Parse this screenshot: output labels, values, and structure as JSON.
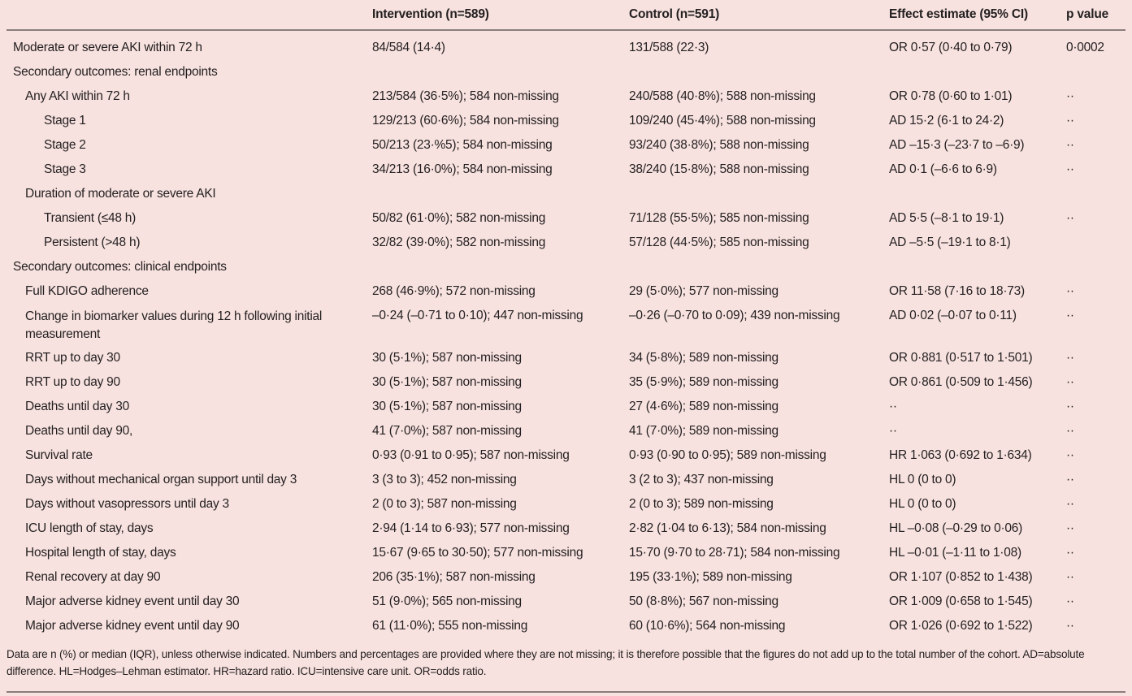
{
  "table": {
    "headers": {
      "outcome": "",
      "intervention": "Intervention (n=589)",
      "control": "Control (n=591)",
      "effect": "Effect estimate (95% CI)",
      "p": "p value"
    },
    "rows": [
      {
        "label": "Moderate or severe AKI within 72 h",
        "level": 0,
        "intervention": "84/584 (14·4)",
        "control": "131/588 (22·3)",
        "effect": "OR 0·57 (0·40 to 0·79)",
        "p": "0·0002"
      },
      {
        "label": "Secondary outcomes: renal endpoints",
        "level": 0,
        "intervention": "",
        "control": "",
        "effect": "",
        "p": ""
      },
      {
        "label": "Any AKI within 72 h",
        "level": 1,
        "intervention": "213/584 (36·5%); 584 non-missing",
        "control": "240/588 (40·8%); 588 non-missing",
        "effect": "OR 0·78 (0·60 to 1·01)",
        "p": "··"
      },
      {
        "label": "Stage 1",
        "level": 2,
        "intervention": "129/213 (60·6%); 584 non-missing",
        "control": "109/240 (45·4%); 588 non-missing",
        "effect": "AD 15·2 (6·1 to 24·2)",
        "p": "··"
      },
      {
        "label": "Stage 2",
        "level": 2,
        "intervention": "50/213 (23·%5); 584 non-missing",
        "control": "93/240 (38·8%); 588 non-missing",
        "effect": "AD –15·3 (–23·7 to –6·9)",
        "p": "··"
      },
      {
        "label": "Stage 3",
        "level": 2,
        "intervention": "34/213 (16·0%); 584 non-missing",
        "control": "38/240 (15·8%); 588 non-missing",
        "effect": "AD 0·1 (–6·6 to 6·9)",
        "p": "··"
      },
      {
        "label": "Duration of moderate or severe AKI",
        "level": 1,
        "intervention": "",
        "control": "",
        "effect": "",
        "p": ""
      },
      {
        "label": "Transient (≤48 h)",
        "level": 2,
        "intervention": "50/82 (61·0%); 582 non-missing",
        "control": "71/128 (55·5%); 585 non-missing",
        "effect": "AD 5·5 (–8·1 to 19·1)",
        "p": "··"
      },
      {
        "label": "Persistent (>48 h)",
        "level": 2,
        "intervention": "32/82 (39·0%); 582 non-missing",
        "control": "57/128 (44·5%); 585 non-missing",
        "effect": "AD –5·5 (–19·1 to 8·1)",
        "p": ""
      },
      {
        "label": "Secondary outcomes: clinical endpoints",
        "level": 0,
        "intervention": "",
        "control": "",
        "effect": "",
        "p": ""
      },
      {
        "label": "Full KDIGO adherence",
        "level": 1,
        "intervention": "268 (46·9%); 572 non-missing",
        "control": "29 (5·0%); 577 non-missing",
        "effect": "OR 11·58 (7·16 to 18·73)",
        "p": "··"
      },
      {
        "label": "Change in biomarker values during 12 h following initial measurement",
        "level": 1,
        "tall": true,
        "intervention": "–0·24 (–0·71 to 0·10); 447 non-missing",
        "control": "–0·26 (–0·70 to 0·09); 439 non-missing",
        "effect": "AD 0·02 (–0·07 to 0·11)",
        "p": "··"
      },
      {
        "label": "RRT up to day 30",
        "level": 1,
        "intervention": "30 (5·1%); 587 non-missing",
        "control": "34 (5·8%); 589 non-missing",
        "effect": "OR 0·881 (0·517 to 1·501)",
        "p": "··"
      },
      {
        "label": "RRT up to day 90",
        "level": 1,
        "intervention": "30 (5·1%); 587 non-missing",
        "control": "35 (5·9%); 589 non-missing",
        "effect": "OR 0·861 (0·509 to 1·456)",
        "p": "··"
      },
      {
        "label": "Deaths until day 30",
        "level": 1,
        "intervention": "30 (5·1%); 587 non-missing",
        "control": "27 (4·6%); 589 non-missing",
        "effect": "··",
        "p": "··"
      },
      {
        "label": "Deaths until day 90,",
        "level": 1,
        "intervention": "41 (7·0%); 587 non-missing",
        "control": "41 (7·0%); 589 non-missing",
        "effect": "··",
        "p": "··"
      },
      {
        "label": "Survival rate",
        "level": 1,
        "intervention": "0·93 (0·91 to 0·95); 587 non-missing",
        "control": "0·93 (0·90 to 0·95); 589 non-missing",
        "effect": "HR 1·063 (0·692 to 1·634)",
        "p": "··"
      },
      {
        "label": "Days without mechanical organ support until day 3",
        "level": 1,
        "intervention": "3 (3 to 3); 452 non-missing",
        "control": "3 (2 to 3); 437 non-missing",
        "effect": "HL 0 (0 to 0)",
        "p": "··"
      },
      {
        "label": "Days without vasopressors until day 3",
        "level": 1,
        "intervention": "2 (0 to 3); 587 non-missing",
        "control": "2 (0 to 3); 589 non-missing",
        "effect": "HL  0 (0 to 0)",
        "p": "··"
      },
      {
        "label": "ICU length of stay, days",
        "level": 1,
        "intervention": "2·94 (1·14 to 6·93); 577 non-missing",
        "control": "2·82 (1·04 to 6·13); 584 non-missing",
        "effect": "HL –0·08 (–0·29 to 0·06)",
        "p": "··"
      },
      {
        "label": "Hospital length of stay, days",
        "level": 1,
        "intervention": "15·67 (9·65 to 30·50); 577 non-missing",
        "control": "15·70 (9·70 to 28·71); 584 non-missing",
        "effect": "HL –0·01 (–1·11 to 1·08)",
        "p": "··"
      },
      {
        "label": "Renal recovery at day 90",
        "level": 1,
        "intervention": "206 (35·1%); 587 non-missing",
        "control": "195 (33·1%); 589 non-missing",
        "effect": "OR 1·107 (0·852 to 1·438)",
        "p": "··"
      },
      {
        "label": "Major adverse kidney event until day 30",
        "level": 1,
        "intervention": "51 (9·0%); 565 non-missing",
        "control": "50 (8·8%); 567 non-missing",
        "effect": "OR 1·009 (0·658 to 1·545)",
        "p": "··"
      },
      {
        "label": "Major adverse kidney event until day 90",
        "level": 1,
        "intervention": "61 (11·0%); 555 non-missing",
        "control": "60 (10·6%); 564 non-missing",
        "effect": "OR 1·026 (0·692 to 1·522)",
        "p": "··"
      }
    ]
  },
  "footnote": "Data are n (%) or median (IQR), unless otherwise indicated. Numbers and percentages are provided where they are not missing; it is therefore possible that the figures do not add up to the total number of the cohort. AD=absolute difference. HL=Hodges–Lehman estimator. HR=hazard ratio. ICU=intensive care unit. OR=odds ratio."
}
